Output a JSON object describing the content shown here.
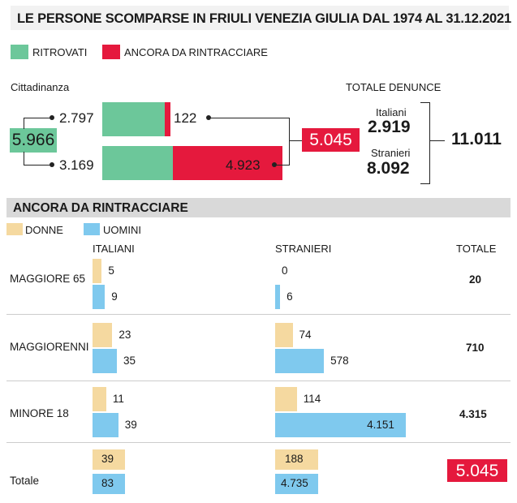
{
  "title": "LE PERSONE SCOMPARSE IN FRIULI VENEZIA GIULIA DAL 1974 AL 31.12.2021",
  "colors": {
    "ritrovati": "#6cc79a",
    "ancora": "#e5193d",
    "donne": "#f5d9a0",
    "uomini": "#7fc9ee"
  },
  "legend_top": {
    "ritrovati": "RITROVATI",
    "ancora": "ANCORA DA RINTRACCIARE"
  },
  "cittadinanza": {
    "label": "Cittadinanza",
    "total_all": "5.966",
    "italiani_ritrovati": "2.797",
    "italiani_ancora": "122",
    "stranieri_ritrovati": "3.169",
    "stranieri_ancora": "4.923",
    "total_ancora": "5.045"
  },
  "denunce": {
    "label": "TOTALE DENUNCE",
    "italiani_label": "Italiani",
    "italiani": "2.919",
    "stranieri_label": "Stranieri",
    "stranieri": "8.092",
    "total": "11.011"
  },
  "section_title": "ANCORA DA RINTRACCIARE",
  "legend_gender": {
    "donne": "DONNE",
    "uomini": "UOMINI"
  },
  "columns": {
    "italiani": "ITALIANI",
    "stranieri": "STRANIERI",
    "totale": "TOTALE"
  },
  "chart_data": {
    "type": "bar",
    "title": "ANCORA DA RINTRACCIARE",
    "categories": [
      "MAGGIORE 65",
      "MAGGIORENNI",
      "MINORE 18"
    ],
    "series": [
      {
        "name": "DONNE",
        "group": "ITALIANI",
        "values": [
          5,
          23,
          11
        ],
        "labels": [
          "5",
          "23",
          "11"
        ]
      },
      {
        "name": "UOMINI",
        "group": "ITALIANI",
        "values": [
          9,
          35,
          39
        ],
        "labels": [
          "9",
          "35",
          "39"
        ]
      },
      {
        "name": "DONNE",
        "group": "STRANIERI",
        "values": [
          0,
          74,
          114
        ],
        "labels": [
          "0",
          "74",
          "114"
        ]
      },
      {
        "name": "UOMINI",
        "group": "STRANIERI",
        "values": [
          6,
          578,
          4151
        ],
        "labels": [
          "6",
          "578",
          "4.151"
        ]
      }
    ],
    "totals": [
      "20",
      "710",
      "4.315"
    ]
  },
  "totale_row": {
    "label": "Totale",
    "italiani_donne": "39",
    "italiani_uomini": "83",
    "stranieri_donne": "188",
    "stranieri_uomini": "4.735",
    "grand_total": "5.045"
  }
}
